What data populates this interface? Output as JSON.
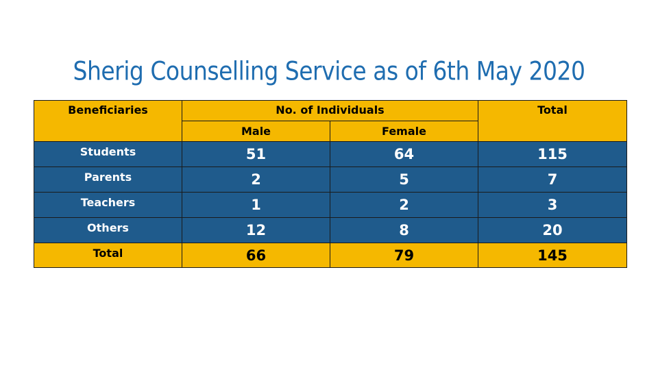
{
  "title": "Sherig Counselling Service as of 6th May 2020",
  "colors": {
    "title": "#1f6db0",
    "header_bg": "#f5b800",
    "body_bg": "#1f5b8c",
    "body_text": "#ffffff"
  },
  "table": {
    "headers": {
      "beneficiaries": "Beneficiaries",
      "individuals": "No. of Individuals",
      "male": "Male",
      "female": "Female",
      "total": "Total"
    },
    "rows": [
      {
        "label": "Students",
        "male": "51",
        "female": "64",
        "total": "115"
      },
      {
        "label": "Parents",
        "male": "2",
        "female": "5",
        "total": "7"
      },
      {
        "label": "Teachers",
        "male": "1",
        "female": "2",
        "total": "3"
      },
      {
        "label": "Others",
        "male": "12",
        "female": "8",
        "total": "20"
      }
    ],
    "totals": {
      "label": "Total",
      "male": "66",
      "female": "79",
      "total": "145"
    }
  }
}
